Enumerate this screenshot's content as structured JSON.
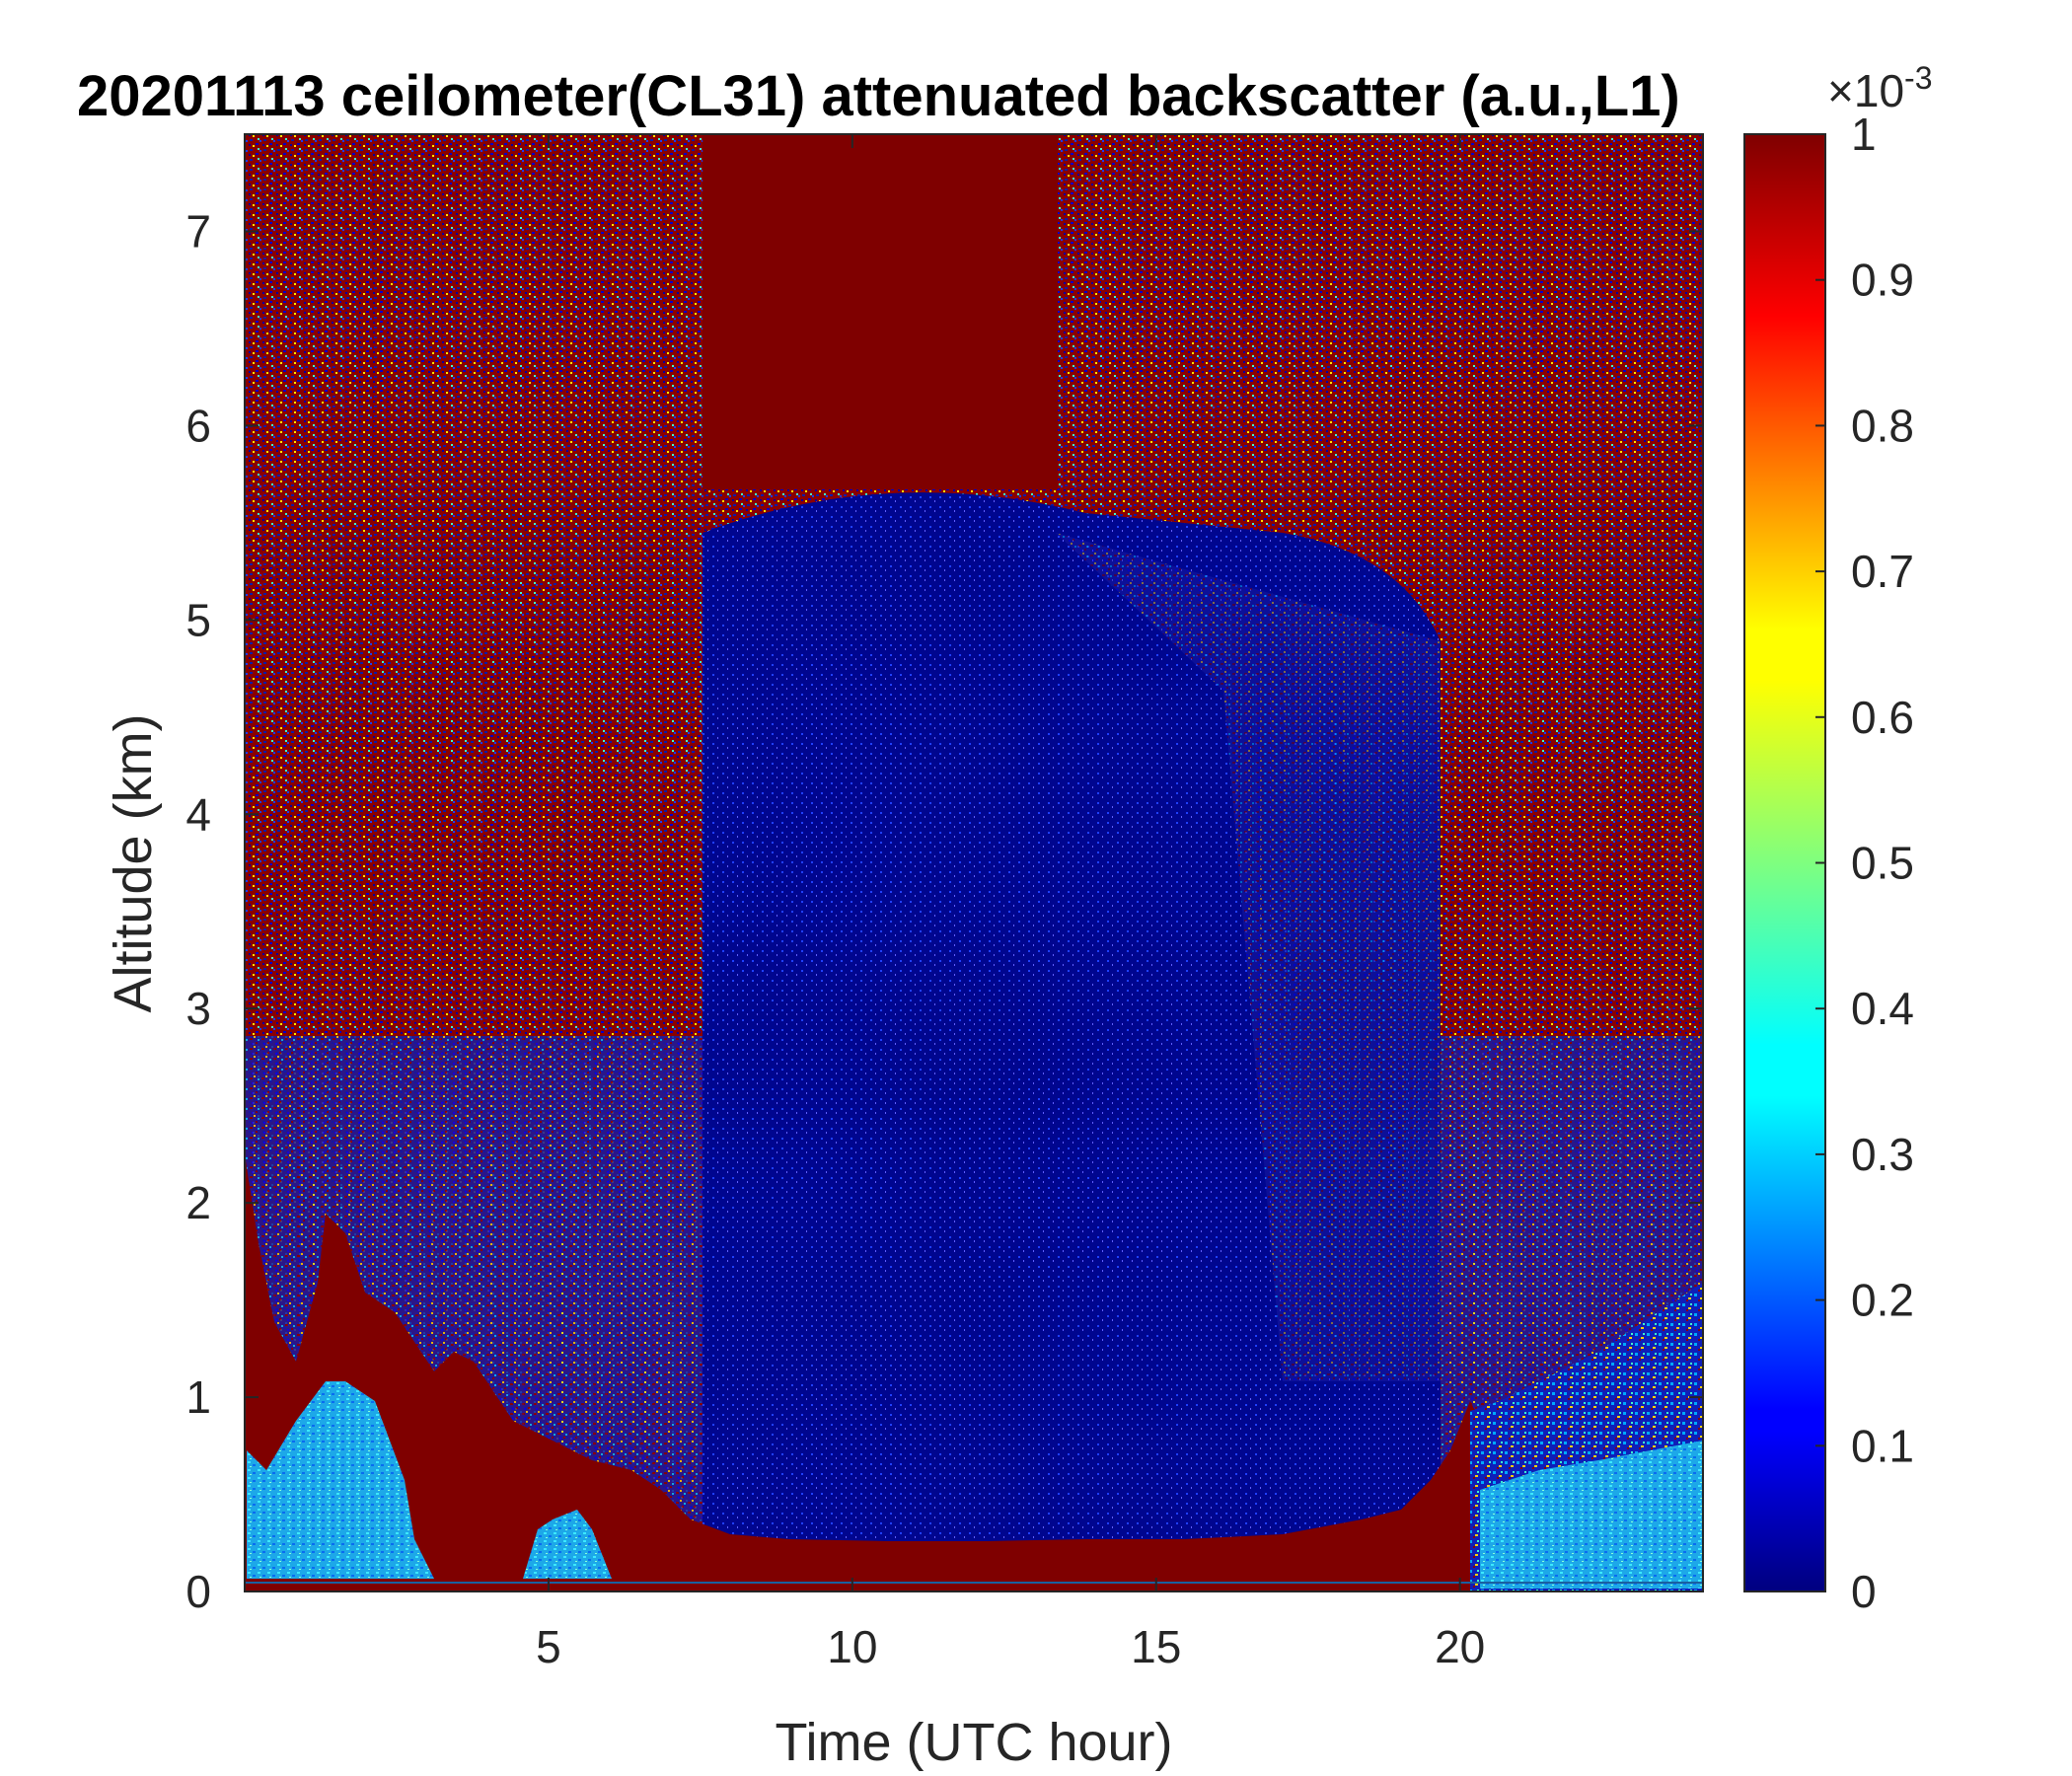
{
  "chart_data": {
    "type": "heatmap",
    "title": "20201113 ceilometer(CL31) attenuated backscatter (a.u.,L1)",
    "xlabel": "Time (UTC hour)",
    "ylabel": "Altitude (km)",
    "xlim": [
      0,
      24
    ],
    "ylim": [
      0,
      7.5
    ],
    "xticks": [
      5,
      10,
      15,
      20
    ],
    "yticks": [
      0,
      1,
      2,
      3,
      4,
      5,
      6,
      7
    ],
    "colorbar": {
      "colormap": "jet",
      "clim": [
        0,
        0.001
      ],
      "ticks": [
        0,
        0.1,
        0.2,
        0.3,
        0.4,
        0.5,
        0.6,
        0.7,
        0.8,
        0.9,
        1
      ],
      "exponent_label": "×10",
      "exponent_power": "-3"
    },
    "features": [
      {
        "description": "noisy saturated background aloft",
        "x_range": [
          0,
          7.5
        ],
        "y_range": [
          2,
          7.5
        ]
      },
      {
        "description": "saturated red block aloft",
        "x_range": [
          7.5,
          13
        ],
        "y_range": [
          5.5,
          7.5
        ]
      },
      {
        "description": "low-signal clear column",
        "x_range": [
          7.5,
          19.5
        ],
        "y_range": [
          0.3,
          5.5
        ]
      },
      {
        "description": "boundary layer / cloud layer top",
        "x": [
          0,
          1,
          2,
          3,
          4,
          5,
          6,
          7,
          8,
          10,
          12,
          14,
          16,
          18,
          19.5
        ],
        "y": [
          1.6,
          1.3,
          1.8,
          1.2,
          1.0,
          0.8,
          0.75,
          0.6,
          0.28,
          0.25,
          0.25,
          0.27,
          0.3,
          0.35,
          0.4
        ]
      },
      {
        "description": "noisy background returning aloft",
        "x_range": [
          19.5,
          24
        ],
        "y_range": [
          1.5,
          7.5
        ]
      },
      {
        "description": "low-level cyan layer",
        "x_range": [
          20,
          24
        ],
        "y_range": [
          0,
          0.6
        ]
      }
    ]
  }
}
